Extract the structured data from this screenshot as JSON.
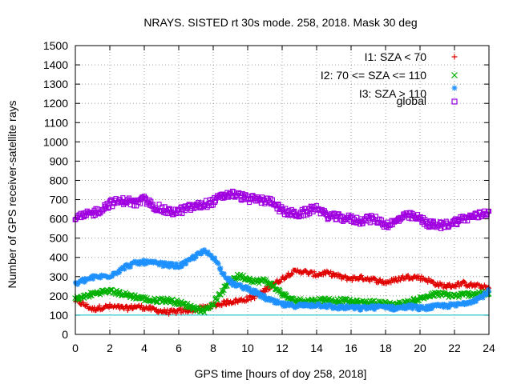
{
  "chart_data": {
    "type": "scatter",
    "title": "NRAYS. SISTED rt 30s mode. 258, 2018. Mask 30 deg",
    "xlabel": "GPS time [hours of doy 258, 2018]",
    "ylabel": "Number of GPS receiver-satellite rays",
    "xlim": [
      0,
      24
    ],
    "ylim": [
      0,
      1500
    ],
    "x_ticks": [
      "0",
      "2",
      "4",
      "6",
      "8",
      "10",
      "12",
      "14",
      "16",
      "18",
      "20",
      "22",
      "24"
    ],
    "y_ticks": [
      "0",
      "100",
      "200",
      "300",
      "400",
      "500",
      "600",
      "700",
      "800",
      "900",
      "1000",
      "1100",
      "1200",
      "1300",
      "1400",
      "1500"
    ],
    "grid": true,
    "legend_position": "top-right",
    "reference_line": {
      "y": 100,
      "color": "#00c0c0"
    },
    "series": [
      {
        "name": "I1: SZA < 70",
        "marker": "plus",
        "color": "#e00000",
        "x": [
          0,
          0.5,
          1,
          1.5,
          2,
          2.5,
          3,
          3.5,
          4,
          4.5,
          5,
          5.5,
          6,
          6.5,
          7,
          7.5,
          8,
          8.5,
          9,
          9.5,
          10,
          10.5,
          11,
          11.5,
          12,
          12.5,
          13,
          13.5,
          14,
          14.5,
          15,
          15.5,
          16,
          16.5,
          17,
          17.5,
          18,
          18.5,
          19,
          19.5,
          20,
          20.5,
          21,
          21.5,
          22,
          22.5,
          23,
          23.5,
          24
        ],
        "values": [
          175,
          155,
          130,
          140,
          145,
          140,
          135,
          145,
          140,
          130,
          120,
          115,
          120,
          125,
          130,
          140,
          150,
          160,
          170,
          175,
          185,
          200,
          230,
          260,
          290,
          320,
          330,
          320,
          310,
          320,
          310,
          295,
          290,
          295,
          290,
          280,
          270,
          280,
          295,
          300,
          295,
          280,
          260,
          250,
          255,
          265,
          255,
          250,
          240
        ]
      },
      {
        "name": "I2: 70 <= SZA <= 110",
        "marker": "cross",
        "color": "#00b000",
        "x": [
          0,
          0.5,
          1,
          1.5,
          2,
          2.5,
          3,
          3.5,
          4,
          4.5,
          5,
          5.5,
          6,
          6.5,
          7,
          7.5,
          8,
          8.5,
          9,
          9.5,
          10,
          10.5,
          11,
          11.5,
          12,
          12.5,
          13,
          13.5,
          14,
          14.5,
          15,
          15.5,
          16,
          16.5,
          17,
          17.5,
          18,
          18.5,
          19,
          19.5,
          20,
          20.5,
          21,
          21.5,
          22,
          22.5,
          23,
          23.5,
          24
        ],
        "values": [
          185,
          195,
          210,
          220,
          225,
          215,
          205,
          195,
          185,
          175,
          180,
          175,
          165,
          150,
          135,
          125,
          160,
          220,
          280,
          305,
          290,
          275,
          280,
          250,
          210,
          180,
          175,
          175,
          175,
          180,
          175,
          175,
          170,
          165,
          165,
          165,
          160,
          155,
          160,
          170,
          185,
          200,
          210,
          205,
          200,
          205,
          210,
          215,
          210
        ]
      },
      {
        "name": "I3: SZA > 110",
        "marker": "star",
        "color": "#1e90ff",
        "x": [
          0,
          0.5,
          1,
          1.5,
          2,
          2.5,
          3,
          3.5,
          4,
          4.5,
          5,
          5.5,
          6,
          6.5,
          7,
          7.5,
          8,
          8.5,
          9,
          9.5,
          10,
          10.5,
          11,
          11.5,
          12,
          12.5,
          13,
          13.5,
          14,
          14.5,
          15,
          15.5,
          16,
          16.5,
          17,
          17.5,
          18,
          18.5,
          19,
          19.5,
          20,
          20.5,
          21,
          21.5,
          22,
          22.5,
          23,
          23.5,
          24
        ],
        "values": [
          260,
          280,
          295,
          300,
          305,
          330,
          355,
          370,
          375,
          370,
          365,
          360,
          355,
          375,
          410,
          430,
          405,
          330,
          270,
          250,
          240,
          215,
          190,
          170,
          155,
          150,
          150,
          150,
          155,
          150,
          140,
          140,
          140,
          135,
          140,
          140,
          145,
          135,
          140,
          145,
          135,
          140,
          145,
          150,
          150,
          160,
          175,
          190,
          225
        ]
      },
      {
        "name": "global",
        "marker": "square",
        "color": "#a000e0",
        "x": [
          0,
          0.5,
          1,
          1.5,
          2,
          2.5,
          3,
          3.5,
          4,
          4.5,
          5,
          5.5,
          6,
          6.5,
          7,
          7.5,
          8,
          8.5,
          9,
          9.5,
          10,
          10.5,
          11,
          11.5,
          12,
          12.5,
          13,
          13.5,
          14,
          14.5,
          15,
          15.5,
          16,
          16.5,
          17,
          17.5,
          18,
          18.5,
          19,
          19.5,
          20,
          20.5,
          21,
          21.5,
          22,
          22.5,
          23,
          23.5,
          24
        ],
        "values": [
          600,
          615,
          630,
          650,
          680,
          690,
          695,
          680,
          700,
          670,
          650,
          635,
          640,
          655,
          665,
          675,
          690,
          715,
          730,
          720,
          705,
          700,
          695,
          690,
          640,
          630,
          625,
          640,
          660,
          620,
          610,
          605,
          600,
          590,
          600,
          595,
          570,
          580,
          610,
          615,
          600,
          575,
          565,
          570,
          585,
          600,
          610,
          620,
          640
        ]
      }
    ]
  }
}
